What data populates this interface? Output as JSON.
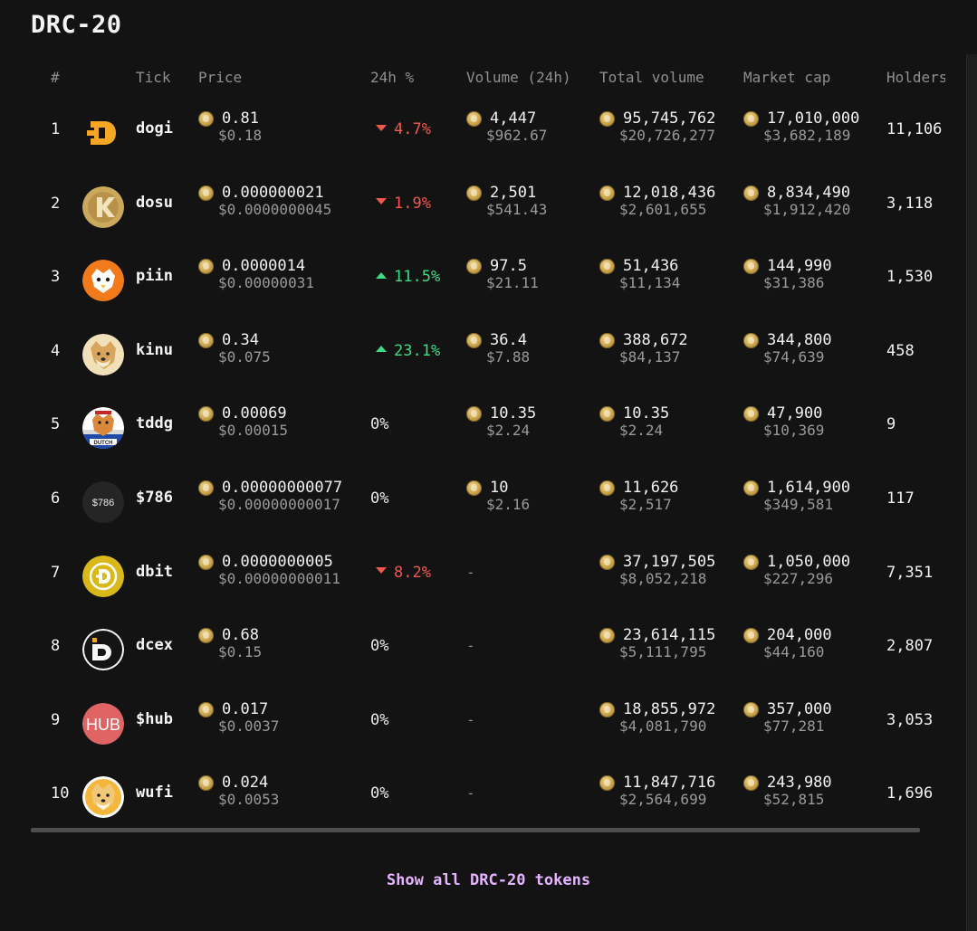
{
  "section_title": "DRC-20",
  "columns": {
    "rank": "#",
    "tick": "Tick",
    "price": "Price",
    "change": "24h %",
    "volume": "Volume (24h)",
    "total_volume": "Total volume",
    "market_cap": "Market cap",
    "holders": "Holders"
  },
  "rows": [
    {
      "rank": "1",
      "logo": "dogi-logo",
      "tick": "dogi",
      "price": "0.81",
      "price_usd": "$0.18",
      "change": "4.7%",
      "direction": "down",
      "volume": "4,447",
      "volume_usd": "$962.67",
      "total_volume": "95,745,762",
      "total_volume_usd": "$20,726,277",
      "market_cap": "17,010,000",
      "market_cap_usd": "$3,682,189",
      "holders": "11,106"
    },
    {
      "rank": "2",
      "logo": "dosu-logo",
      "tick": "dosu",
      "price": "0.000000021",
      "price_usd": "$0.0000000045",
      "change": "1.9%",
      "direction": "down",
      "volume": "2,501",
      "volume_usd": "$541.43",
      "total_volume": "12,018,436",
      "total_volume_usd": "$2,601,655",
      "market_cap": "8,834,490",
      "market_cap_usd": "$1,912,420",
      "holders": "3,118"
    },
    {
      "rank": "3",
      "logo": "piin-logo",
      "tick": "piin",
      "price": "0.0000014",
      "price_usd": "$0.00000031",
      "change": "11.5%",
      "direction": "up",
      "volume": "97.5",
      "volume_usd": "$21.11",
      "total_volume": "51,436",
      "total_volume_usd": "$11,134",
      "market_cap": "144,990",
      "market_cap_usd": "$31,386",
      "holders": "1,530"
    },
    {
      "rank": "4",
      "logo": "kinu-logo",
      "tick": "kinu",
      "price": "0.34",
      "price_usd": "$0.075",
      "change": "23.1%",
      "direction": "up",
      "volume": "36.4",
      "volume_usd": "$7.88",
      "total_volume": "388,672",
      "total_volume_usd": "$84,137",
      "market_cap": "344,800",
      "market_cap_usd": "$74,639",
      "holders": "458"
    },
    {
      "rank": "5",
      "logo": "tddg-logo",
      "logo_text": "DUTCH",
      "tick": "tddg",
      "price": "0.00069",
      "price_usd": "$0.00015",
      "change": "0%",
      "direction": "flat",
      "volume": "10.35",
      "volume_usd": "$2.24",
      "total_volume": "10.35",
      "total_volume_usd": "$2.24",
      "market_cap": "47,900",
      "market_cap_usd": "$10,369",
      "holders": "9"
    },
    {
      "rank": "6",
      "logo": "786-logo",
      "logo_text": "$786",
      "tick": "$786",
      "price": "0.00000000077",
      "price_usd": "$0.00000000017",
      "change": "0%",
      "direction": "flat",
      "volume": "10",
      "volume_usd": "$2.16",
      "total_volume": "11,626",
      "total_volume_usd": "$2,517",
      "market_cap": "1,614,900",
      "market_cap_usd": "$349,581",
      "holders": "117"
    },
    {
      "rank": "7",
      "logo": "dbit-logo",
      "tick": "dbit",
      "price": "0.0000000005",
      "price_usd": "$0.00000000011",
      "change": "8.2%",
      "direction": "down",
      "volume": "-",
      "volume_usd": "",
      "total_volume": "37,197,505",
      "total_volume_usd": "$8,052,218",
      "market_cap": "1,050,000",
      "market_cap_usd": "$227,296",
      "holders": "7,351"
    },
    {
      "rank": "8",
      "logo": "dcex-logo",
      "tick": "dcex",
      "price": "0.68",
      "price_usd": "$0.15",
      "change": "0%",
      "direction": "flat",
      "volume": "-",
      "volume_usd": "",
      "total_volume": "23,614,115",
      "total_volume_usd": "$5,111,795",
      "market_cap": "204,000",
      "market_cap_usd": "$44,160",
      "holders": "2,807"
    },
    {
      "rank": "9",
      "logo": "hub-logo",
      "logo_text": "HUB",
      "tick": "$hub",
      "price": "0.017",
      "price_usd": "$0.0037",
      "change": "0%",
      "direction": "flat",
      "volume": "-",
      "volume_usd": "",
      "total_volume": "18,855,972",
      "total_volume_usd": "$4,081,790",
      "market_cap": "357,000",
      "market_cap_usd": "$77,281",
      "holders": "3,053"
    },
    {
      "rank": "10",
      "logo": "wufi-logo",
      "tick": "wufi",
      "price": "0.024",
      "price_usd": "$0.0053",
      "change": "0%",
      "direction": "flat",
      "volume": "-",
      "volume_usd": "",
      "total_volume": "11,847,716",
      "total_volume_usd": "$2,564,699",
      "market_cap": "243,980",
      "market_cap_usd": "$52,815",
      "holders": "1,696"
    }
  ],
  "colors": {
    "background": "#131313",
    "down": "#f0584c",
    "up": "#3ddc84",
    "link": "#e6b3ff"
  },
  "footer": {
    "show_all_label": "Show all DRC-20 tokens"
  }
}
